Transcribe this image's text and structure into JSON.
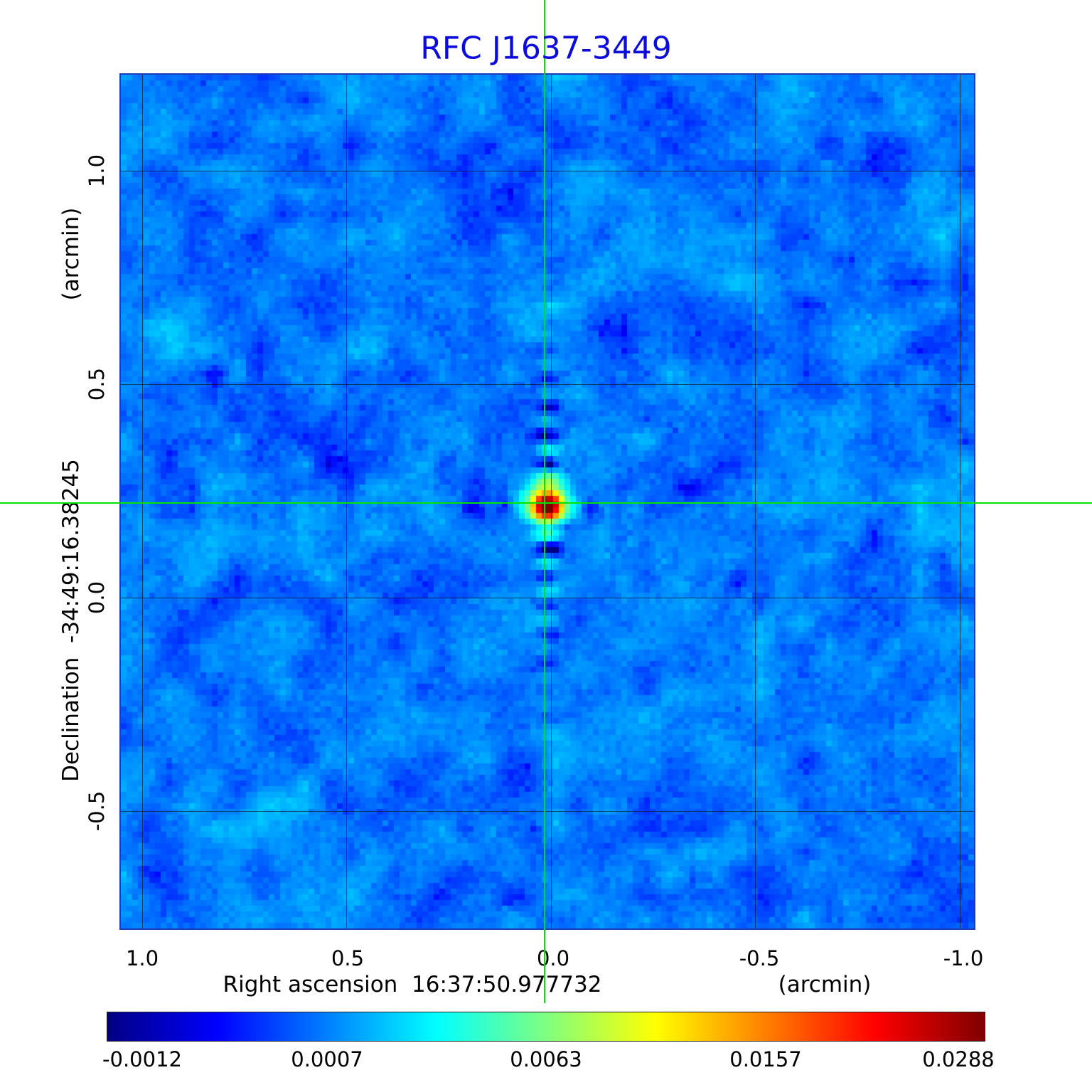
{
  "title": "RFC J1637-3449",
  "colors": {
    "title": "#0b0bdc",
    "crosshair": "#00e400"
  },
  "axes": {
    "x": {
      "title": "Right ascension  16:37:50.977732",
      "unit": "(arcmin)",
      "ticks": [
        "1.0",
        "0.5",
        "0.0",
        "-0.5",
        "-1.0"
      ]
    },
    "y": {
      "title": "Declination  -34:49:16.38245",
      "unit": "(arcmin)",
      "ticks": [
        "1.0",
        "0.5",
        "0.0",
        "-0.5"
      ]
    }
  },
  "colorbar": {
    "ticks": [
      "-0.0012",
      "0.0007",
      "0.0063",
      "0.0157",
      "0.0288"
    ]
  },
  "chart_data": {
    "type": "heatmap",
    "title": "RFC J1637-3449",
    "xlabel": "Right ascension 16:37:50.977732 (arcmin)",
    "ylabel": "Declination -34:49:16.38245 (arcmin)",
    "x_ticks_arcmin": [
      1.0,
      0.5,
      0.0,
      -0.5,
      -1.0
    ],
    "y_ticks_arcmin": [
      1.0,
      0.5,
      0.0,
      -0.5
    ],
    "x_range_arcmin": [
      1.05,
      -1.05
    ],
    "y_range_arcmin": [
      -0.78,
      1.23
    ],
    "grid": true,
    "intensity_scale": "squared",
    "intensity_min": -0.0012,
    "intensity_max": 0.0288,
    "intensity_ticks": [
      -0.0012,
      0.0007,
      0.0063,
      0.0157,
      0.0288
    ],
    "peak_source": {
      "ra_offset_arcmin": 0.016,
      "dec_offset_arcmin": 0.222,
      "value": 0.0288
    },
    "colormap": [
      {
        "pos": 0.0,
        "color": "#000083"
      },
      {
        "pos": 0.125,
        "color": "#0000ff"
      },
      {
        "pos": 0.375,
        "color": "#00ffff"
      },
      {
        "pos": 0.625,
        "color": "#ffff00"
      },
      {
        "pos": 0.875,
        "color": "#ff0000"
      },
      {
        "pos": 1.0,
        "color": "#800000"
      }
    ]
  }
}
